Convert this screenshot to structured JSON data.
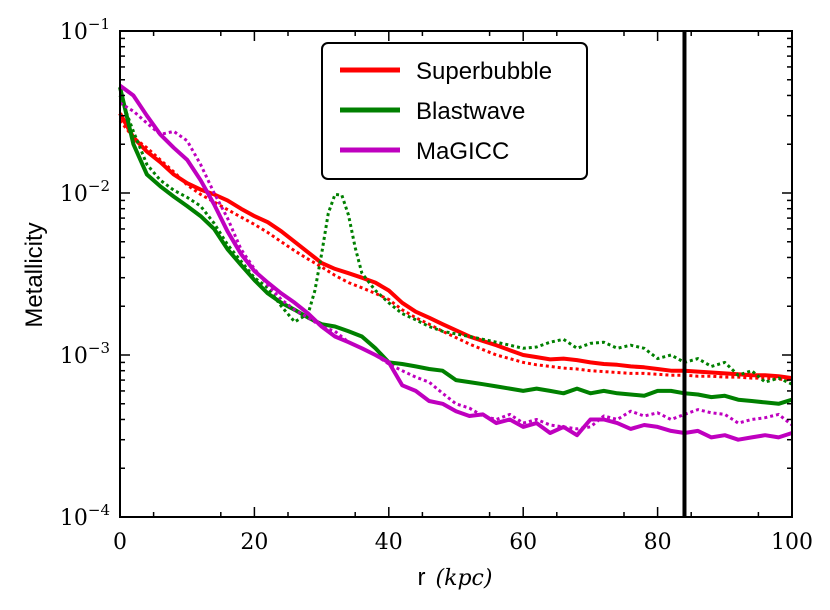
{
  "chart_data": {
    "type": "line",
    "xlabel": "r",
    "xlabel_unit": "(kpc)",
    "ylabel": "Metallicity",
    "xlim": [
      0,
      100
    ],
    "ylim": [
      0.0001,
      0.1
    ],
    "yscale": "log",
    "x_ticks": [
      0,
      20,
      40,
      60,
      80,
      100
    ],
    "y_ticks": [
      {
        "value": 0.0001,
        "base": "10",
        "exp": "−4"
      },
      {
        "value": 0.001,
        "base": "10",
        "exp": "−3"
      },
      {
        "value": 0.01,
        "base": "10",
        "exp": "−2"
      },
      {
        "value": 0.1,
        "base": "10",
        "exp": "−1"
      }
    ],
    "legend_position": "top-center",
    "vertical_line": {
      "x": 84,
      "color": "#000000"
    },
    "series": [
      {
        "name": "Superbubble",
        "color": "#ff0000",
        "style": "solid",
        "x": [
          0,
          2,
          4,
          6,
          8,
          10,
          12,
          14,
          16,
          18,
          20,
          22,
          24,
          26,
          28,
          30,
          32,
          34,
          36,
          38,
          40,
          42,
          44,
          46,
          48,
          50,
          52,
          54,
          56,
          58,
          60,
          62,
          64,
          66,
          68,
          70,
          72,
          74,
          76,
          78,
          80,
          82,
          84,
          86,
          88,
          90,
          92,
          94,
          96,
          98,
          100
        ],
        "y": [
          0.031,
          0.022,
          0.018,
          0.0155,
          0.013,
          0.0115,
          0.0105,
          0.0098,
          0.009,
          0.008,
          0.0072,
          0.0066,
          0.0058,
          0.005,
          0.0043,
          0.0037,
          0.0034,
          0.0032,
          0.003,
          0.0028,
          0.0025,
          0.0021,
          0.00185,
          0.0017,
          0.00155,
          0.00142,
          0.0013,
          0.00122,
          0.00115,
          0.00107,
          0.001,
          0.00097,
          0.00094,
          0.00095,
          0.00093,
          0.0009,
          0.00088,
          0.00087,
          0.00085,
          0.00084,
          0.00082,
          0.0008,
          0.0008,
          0.00079,
          0.00078,
          0.00077,
          0.00076,
          0.00075,
          0.00075,
          0.00074,
          0.00072
        ]
      },
      {
        "name": "Superbubble (dotted)",
        "color": "#ff0000",
        "style": "dotted",
        "x": [
          0,
          2,
          4,
          6,
          8,
          10,
          12,
          14,
          16,
          18,
          20,
          22,
          24,
          26,
          28,
          30,
          32,
          34,
          36,
          38,
          40,
          42,
          44,
          46,
          48,
          50,
          52,
          54,
          56,
          58,
          60,
          62,
          64,
          66,
          68,
          70,
          72,
          74,
          76,
          78,
          80,
          82,
          84,
          86,
          88,
          90,
          92,
          94,
          96,
          98,
          100
        ],
        "y": [
          0.028,
          0.022,
          0.019,
          0.016,
          0.0135,
          0.0112,
          0.0098,
          0.0088,
          0.0079,
          0.0071,
          0.0064,
          0.0057,
          0.005,
          0.0044,
          0.0039,
          0.0035,
          0.0031,
          0.0028,
          0.0026,
          0.0024,
          0.0022,
          0.0019,
          0.0017,
          0.00155,
          0.0014,
          0.00128,
          0.00117,
          0.00108,
          0.001,
          0.00095,
          0.0009,
          0.00087,
          0.00085,
          0.00083,
          0.00082,
          0.0008,
          0.00079,
          0.00078,
          0.00077,
          0.00077,
          0.00076,
          0.00075,
          0.00075,
          0.00074,
          0.00074,
          0.00073,
          0.00073,
          0.00072,
          0.00072,
          0.00071,
          0.0007
        ]
      },
      {
        "name": "Blastwave",
        "color": "#008000",
        "style": "solid",
        "x": [
          0,
          2,
          4,
          6,
          8,
          10,
          12,
          14,
          16,
          18,
          20,
          22,
          24,
          26,
          28,
          30,
          32,
          34,
          36,
          38,
          40,
          42,
          44,
          46,
          48,
          50,
          52,
          54,
          56,
          58,
          60,
          62,
          64,
          66,
          68,
          70,
          72,
          74,
          76,
          78,
          80,
          82,
          84,
          86,
          88,
          90,
          92,
          94,
          96,
          98,
          100
        ],
        "y": [
          0.045,
          0.02,
          0.013,
          0.011,
          0.0095,
          0.0083,
          0.0072,
          0.006,
          0.0045,
          0.0036,
          0.0029,
          0.0024,
          0.0021,
          0.0019,
          0.0017,
          0.00155,
          0.0015,
          0.0014,
          0.0013,
          0.0011,
          0.0009,
          0.00088,
          0.00085,
          0.00082,
          0.0008,
          0.0007,
          0.00068,
          0.00066,
          0.00064,
          0.00062,
          0.0006,
          0.00062,
          0.0006,
          0.00058,
          0.00062,
          0.00058,
          0.0006,
          0.00058,
          0.00057,
          0.00056,
          0.0006,
          0.0006,
          0.00058,
          0.00057,
          0.00055,
          0.00056,
          0.00053,
          0.00052,
          0.00051,
          0.0005,
          0.00053
        ]
      },
      {
        "name": "Blastwave (dotted)",
        "color": "#008000",
        "style": "dotted",
        "x": [
          0,
          2,
          4,
          6,
          8,
          10,
          12,
          14,
          16,
          18,
          20,
          22,
          24,
          26,
          28,
          29,
          30,
          31,
          32,
          33,
          34,
          35,
          36,
          38,
          40,
          42,
          44,
          46,
          48,
          50,
          52,
          54,
          56,
          58,
          60,
          62,
          64,
          66,
          68,
          70,
          72,
          74,
          76,
          78,
          80,
          82,
          84,
          86,
          88,
          90,
          92,
          94,
          96,
          98,
          100
        ],
        "y": [
          0.04,
          0.024,
          0.015,
          0.012,
          0.0104,
          0.0094,
          0.0083,
          0.0065,
          0.0048,
          0.0038,
          0.003,
          0.0026,
          0.002,
          0.0016,
          0.0018,
          0.0025,
          0.0042,
          0.0075,
          0.0098,
          0.0097,
          0.0073,
          0.0046,
          0.0032,
          0.0025,
          0.0021,
          0.0018,
          0.00165,
          0.0015,
          0.0014,
          0.00135,
          0.0013,
          0.00125,
          0.0012,
          0.00115,
          0.0011,
          0.00112,
          0.0012,
          0.00125,
          0.0011,
          0.00118,
          0.0012,
          0.0011,
          0.00115,
          0.0011,
          0.00095,
          0.001,
          0.0009,
          0.00095,
          0.00085,
          0.0009,
          0.00075,
          0.0008,
          0.00068,
          0.00072,
          0.00066
        ]
      },
      {
        "name": "MaGICC",
        "color": "#bf00bf",
        "style": "solid",
        "x": [
          0,
          2,
          4,
          6,
          8,
          10,
          12,
          14,
          16,
          18,
          20,
          22,
          24,
          26,
          28,
          30,
          32,
          34,
          36,
          38,
          40,
          42,
          44,
          46,
          48,
          50,
          52,
          54,
          56,
          58,
          60,
          62,
          64,
          66,
          68,
          70,
          72,
          74,
          76,
          78,
          80,
          82,
          84,
          86,
          88,
          90,
          92,
          94,
          96,
          98,
          100
        ],
        "y": [
          0.046,
          0.04,
          0.03,
          0.023,
          0.019,
          0.016,
          0.012,
          0.0085,
          0.0058,
          0.0042,
          0.0033,
          0.0028,
          0.0024,
          0.0021,
          0.0018,
          0.0015,
          0.0013,
          0.0012,
          0.0011,
          0.001,
          0.0009,
          0.00065,
          0.0006,
          0.00052,
          0.0005,
          0.00045,
          0.00042,
          0.00043,
          0.00038,
          0.0004,
          0.00036,
          0.00038,
          0.00033,
          0.00036,
          0.00032,
          0.0004,
          0.0004,
          0.00038,
          0.00035,
          0.00037,
          0.00036,
          0.00034,
          0.00033,
          0.00034,
          0.00031,
          0.00032,
          0.0003,
          0.00031,
          0.00032,
          0.00031,
          0.00033
        ]
      },
      {
        "name": "MaGICC (dotted)",
        "color": "#bf00bf",
        "style": "dotted",
        "x": [
          0,
          2,
          4,
          6,
          8,
          10,
          12,
          14,
          16,
          18,
          20,
          22,
          24,
          26,
          28,
          30,
          32,
          34,
          36,
          38,
          40,
          42,
          44,
          46,
          48,
          50,
          52,
          54,
          56,
          58,
          60,
          62,
          64,
          66,
          68,
          70,
          72,
          74,
          76,
          78,
          80,
          82,
          84,
          86,
          88,
          90,
          92,
          94,
          96,
          98,
          100
        ],
        "y": [
          0.036,
          0.032,
          0.027,
          0.023,
          0.024,
          0.021,
          0.015,
          0.01,
          0.007,
          0.0045,
          0.0034,
          0.0027,
          0.0022,
          0.0019,
          0.0017,
          0.0015,
          0.0014,
          0.0012,
          0.0011,
          0.001,
          0.00088,
          0.0008,
          0.00073,
          0.00068,
          0.00058,
          0.0005,
          0.00047,
          0.00042,
          0.0004,
          0.00043,
          0.00038,
          0.0004,
          0.00037,
          0.00036,
          0.00035,
          0.00036,
          0.00042,
          0.0004,
          0.00045,
          0.00042,
          0.00044,
          0.0004,
          0.00043,
          0.00046,
          0.00044,
          0.00043,
          0.00038,
          0.0004,
          0.00041,
          0.00043,
          0.00037
        ]
      }
    ]
  },
  "legend": [
    {
      "label": "Superbubble",
      "color": "#ff0000"
    },
    {
      "label": "Blastwave",
      "color": "#008000"
    },
    {
      "label": "MaGICC",
      "color": "#bf00bf"
    }
  ]
}
